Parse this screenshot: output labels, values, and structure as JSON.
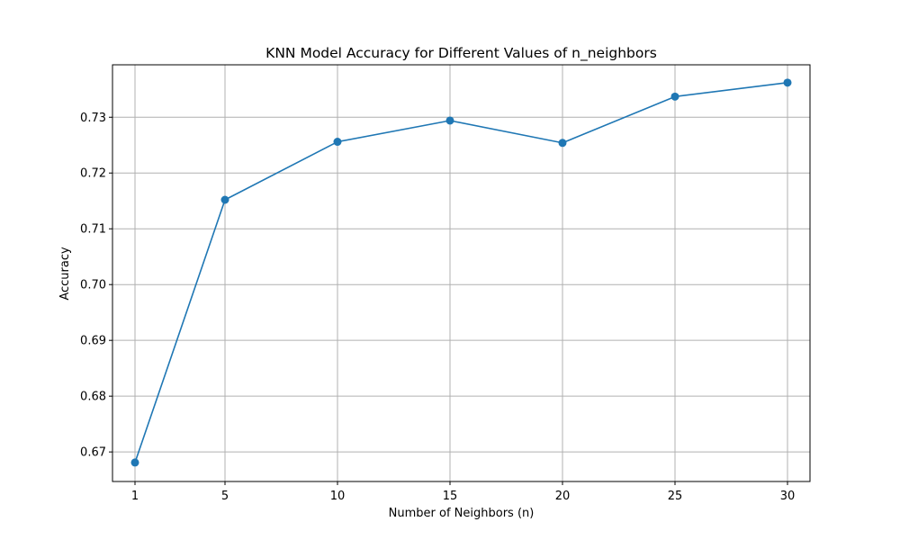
{
  "chart_data": {
    "type": "line",
    "title": "KNN Model Accuracy for Different Values of n_neighbors",
    "xlabel": "Number of Neighbors (n)",
    "ylabel": "Accuracy",
    "x": [
      1,
      5,
      10,
      15,
      20,
      25,
      30
    ],
    "x_ticks": [
      "1",
      "5",
      "10",
      "15",
      "20",
      "25",
      "30"
    ],
    "y_ticks": [
      0.67,
      0.68,
      0.69,
      0.7,
      0.71,
      0.72,
      0.73
    ],
    "y_tick_labels": [
      "0.67",
      "0.68",
      "0.69",
      "0.70",
      "0.71",
      "0.72",
      "0.73"
    ],
    "xlim": [
      0.0,
      31.0
    ],
    "ylim": [
      0.6647,
      0.7394
    ],
    "grid": true,
    "series": [
      {
        "color": "#1f77b4",
        "marker": "circle",
        "values": [
          0.6681,
          0.7152,
          0.7256,
          0.7294,
          0.7254,
          0.7337,
          0.7362
        ]
      }
    ]
  }
}
